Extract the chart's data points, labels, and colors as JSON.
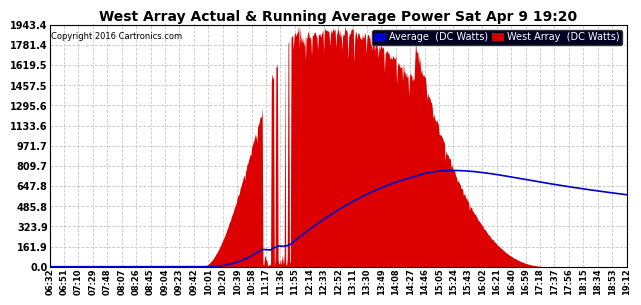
{
  "title_main": "West Array Actual & Running Average Power Sat Apr 9 19:20",
  "copyright": "Copyright 2016 Cartronics.com",
  "legend_labels": [
    "Average  (DC Watts)",
    "West Array  (DC Watts)"
  ],
  "y_ticks": [
    0.0,
    161.9,
    323.9,
    485.8,
    647.8,
    809.7,
    971.7,
    1133.6,
    1295.6,
    1457.5,
    1619.5,
    1781.4,
    1943.4
  ],
  "y_max": 1943.4,
  "x_labels": [
    "06:32",
    "06:51",
    "07:10",
    "07:29",
    "07:48",
    "08:07",
    "08:26",
    "08:45",
    "09:04",
    "09:23",
    "09:42",
    "10:01",
    "10:20",
    "10:39",
    "10:58",
    "11:17",
    "11:36",
    "11:55",
    "12:14",
    "12:33",
    "12:52",
    "13:11",
    "13:30",
    "13:49",
    "14:08",
    "14:27",
    "14:46",
    "15:05",
    "15:24",
    "15:43",
    "16:02",
    "16:21",
    "16:40",
    "16:59",
    "17:18",
    "17:37",
    "17:56",
    "18:15",
    "18:34",
    "18:53",
    "19:12"
  ],
  "bg_color": "#ffffff",
  "grid_color": "#c8c8c8",
  "west_array_color": "#dd0000",
  "avg_color": "#0000cc"
}
